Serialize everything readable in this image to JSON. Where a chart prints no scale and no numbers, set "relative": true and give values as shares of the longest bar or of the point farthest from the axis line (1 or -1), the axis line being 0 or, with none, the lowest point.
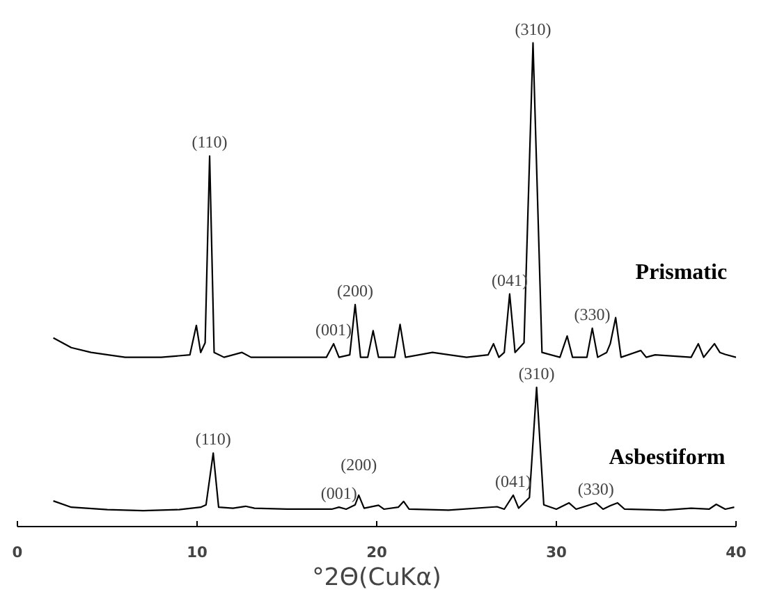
{
  "chart_data": {
    "type": "line",
    "relative": true,
    "xlabel": "°2Θ(CuKα)",
    "xlim": [
      0,
      40
    ],
    "xticks": [
      0,
      10,
      20,
      30,
      40
    ],
    "grid": false,
    "marker": "none",
    "line_style": "solid",
    "series": [
      {
        "name": "Prismatic",
        "color": "#000000",
        "x": [
          2.0,
          3.0,
          4.1,
          6,
          8,
          9.6,
          9.96,
          10.2,
          10.45,
          10.7,
          10.95,
          11.5,
          12.5,
          13,
          15,
          17.2,
          17.6,
          17.9,
          18.5,
          18.8,
          19.1,
          19.5,
          19.8,
          20.1,
          21.0,
          21.3,
          21.6,
          23.1,
          25,
          26.2,
          26.5,
          26.8,
          27.1,
          27.4,
          27.7,
          28.2,
          28.7,
          29.2,
          30.2,
          30.6,
          30.9,
          31.7,
          32.0,
          32.3,
          32.8,
          33.0,
          33.3,
          33.6,
          34.7,
          35.0,
          35.5,
          37.5,
          37.9,
          38.2,
          38.8,
          39.1,
          39.4,
          40
        ],
        "values": [
          0.39,
          0.37,
          0.36,
          0.35,
          0.35,
          0.355,
          0.416,
          0.36,
          0.38,
          0.766,
          0.36,
          0.35,
          0.36,
          0.35,
          0.35,
          0.35,
          0.378,
          0.35,
          0.355,
          0.459,
          0.35,
          0.35,
          0.405,
          0.35,
          0.35,
          0.418,
          0.35,
          0.36,
          0.35,
          0.355,
          0.378,
          0.35,
          0.36,
          0.481,
          0.36,
          0.38,
          1.0,
          0.36,
          0.35,
          0.394,
          0.35,
          0.35,
          0.41,
          0.35,
          0.36,
          0.378,
          0.432,
          0.35,
          0.364,
          0.35,
          0.355,
          0.35,
          0.378,
          0.35,
          0.378,
          0.36,
          0.356,
          0.35
        ]
      },
      {
        "name": "Asbestiform",
        "color": "#000000",
        "x": [
          2.0,
          3,
          5,
          7,
          9,
          10.2,
          10.5,
          10.9,
          11.2,
          12,
          12.7,
          13.2,
          15,
          17.5,
          17.9,
          18.3,
          18.8,
          19.0,
          19.3,
          20.1,
          20.4,
          21.2,
          21.5,
          21.8,
          24,
          26.7,
          27.1,
          27.6,
          27.9,
          28.5,
          28.9,
          29.3,
          30.0,
          30.7,
          31.1,
          32.2,
          32.6,
          33.0,
          33.4,
          33.8,
          36,
          37.5,
          38.5,
          38.9,
          39.4,
          39.9
        ],
        "values": [
          0.053,
          0.04,
          0.035,
          0.033,
          0.035,
          0.04,
          0.045,
          0.152,
          0.04,
          0.038,
          0.042,
          0.038,
          0.036,
          0.036,
          0.04,
          0.036,
          0.045,
          0.065,
          0.038,
          0.044,
          0.036,
          0.04,
          0.052,
          0.036,
          0.034,
          0.041,
          0.036,
          0.065,
          0.038,
          0.06,
          0.288,
          0.045,
          0.036,
          0.049,
          0.036,
          0.049,
          0.036,
          0.043,
          0.049,
          0.036,
          0.034,
          0.038,
          0.036,
          0.046,
          0.036,
          0.04
        ]
      }
    ],
    "annotations": [
      {
        "text": "(110)",
        "x": 10.7,
        "y": 0.766
      },
      {
        "text": "(001)",
        "x": 17.6,
        "y": 0.378
      },
      {
        "text": "(200)",
        "x": 18.8,
        "y": 0.459
      },
      {
        "text": "(041)",
        "x": 27.4,
        "y": 0.481
      },
      {
        "text": "(310)",
        "x": 28.7,
        "y": 1.0
      },
      {
        "text": "(330)",
        "x": 32.0,
        "y": 0.41
      },
      {
        "text": "(110)",
        "x": 10.9,
        "y": 0.152
      },
      {
        "text": "(001)",
        "x": 17.9,
        "y": 0.04
      },
      {
        "text": "(200)",
        "x": 19.0,
        "y": 0.065
      },
      {
        "text": "(041)",
        "x": 27.6,
        "y": 0.065
      },
      {
        "text": "(310)",
        "x": 28.9,
        "y": 0.288
      },
      {
        "text": "(330)",
        "x": 32.2,
        "y": 0.049
      }
    ]
  }
}
